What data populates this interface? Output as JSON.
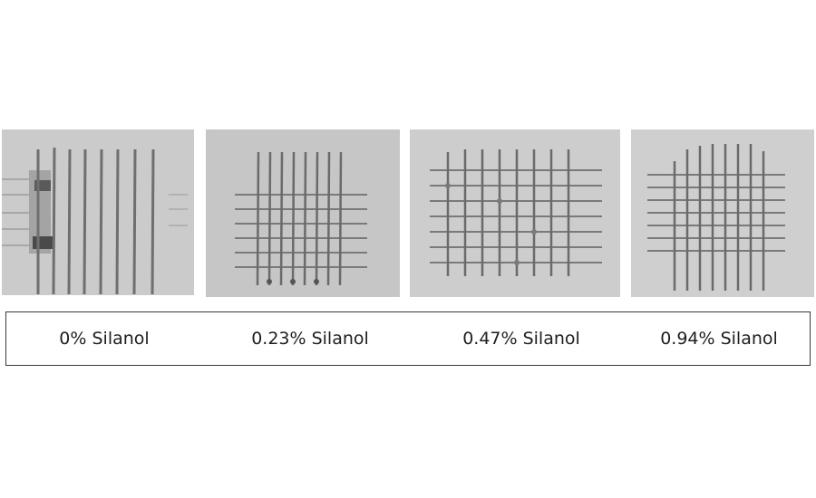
{
  "samples": [
    {
      "label": "0% Silanol",
      "pattern": "parallel-lines-only"
    },
    {
      "label": "0.23% Silanol",
      "pattern": "crosshatch-grid"
    },
    {
      "label": "0.47% Silanol",
      "pattern": "crosshatch-grid"
    },
    {
      "label": "0.94% Silanol",
      "pattern": "crosshatch-grid"
    }
  ],
  "colors": {
    "panel_background": "#c9c9c9",
    "scribe_line": "#6f6f6f",
    "caption_border": "#3a3a3a",
    "caption_text": "#1e1e1e"
  }
}
